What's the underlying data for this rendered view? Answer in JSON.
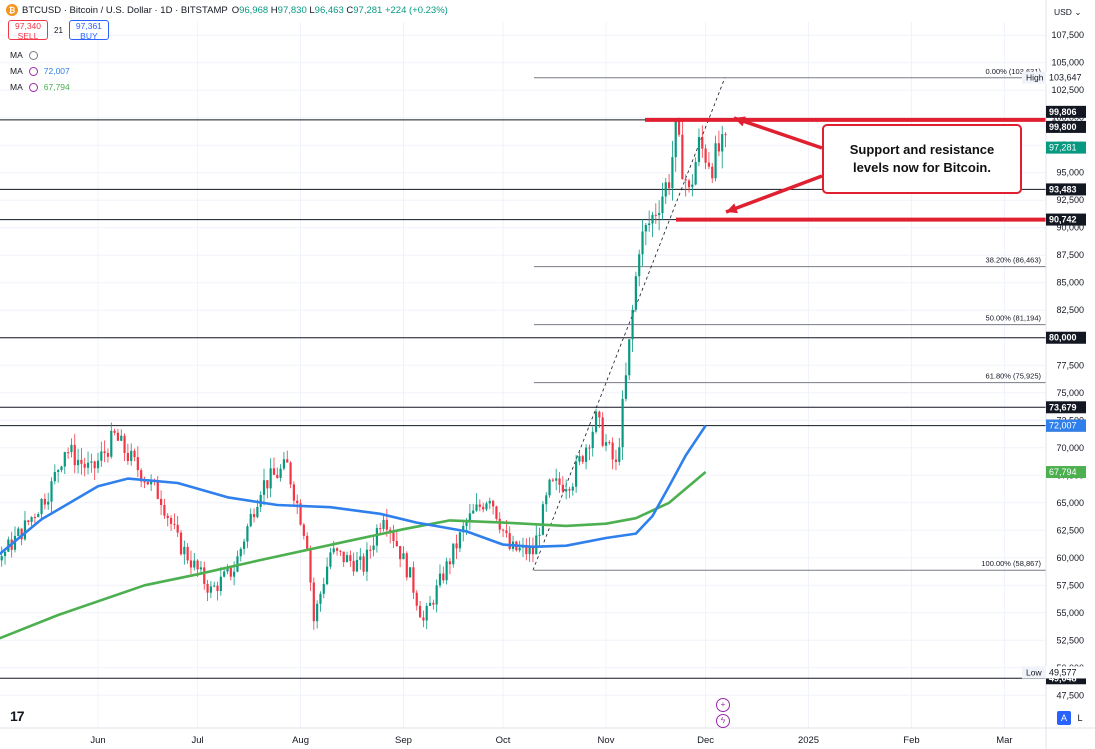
{
  "header": {
    "symbol": "BTCUSD · Bitcoin / U.S. Dollar · 1D · BITSTAMP",
    "logo": "₿",
    "open": "96,968",
    "high": "97,830",
    "low": "96,463",
    "close": "97,281",
    "change": "+224 (+0.23%)",
    "o_key": "O",
    "h_key": "H",
    "l_key": "L",
    "c_key": "C"
  },
  "trade": {
    "sell_price": "97,340",
    "sell_label": "SELL",
    "buy_price": "97,361",
    "buy_label": "BUY",
    "spread": "21"
  },
  "indicators": [
    {
      "label": "MA",
      "value": ""
    },
    {
      "label": "MA",
      "value": "72,007",
      "color": "#2f80ed"
    },
    {
      "label": "MA",
      "value": "67,794",
      "color": "#4caf50"
    }
  ],
  "currency_button": "USD",
  "annotation": "Support and resistance levels now for Bitcoin.",
  "logo_text": "17",
  "scale_buttons": {
    "auto": "A",
    "log": "L"
  },
  "colors": {
    "up": "#089981",
    "down": "#f23645",
    "ma_fast": "#2f80ed",
    "ma_slow": "#4caf50",
    "arrow": "#e02030"
  },
  "chart_data": {
    "type": "candlestick",
    "y_range": [
      47800,
      108700
    ],
    "y_ticks": [
      47500,
      50000,
      52500,
      55000,
      57500,
      60000,
      62500,
      65000,
      67500,
      70000,
      72500,
      75000,
      77500,
      80000,
      82500,
      85000,
      87500,
      90000,
      92500,
      95000,
      97500,
      100000,
      102500,
      105000,
      107500
    ],
    "y_tick_labels": [
      "47,500",
      "50,000",
      "52,500",
      "55,000",
      "57,500",
      "60,000",
      "62,500",
      "65,000",
      "67,500",
      "70,000",
      "72,500",
      "75,000",
      "77,500",
      "80,000",
      "82,500",
      "85,000",
      "87,500",
      "90,000",
      "92,500",
      "95,000",
      "97,500",
      "100,000",
      "102,500",
      "105,000",
      "107,500"
    ],
    "x_labels": [
      {
        "label": "Jun",
        "date": "2024-06-01"
      },
      {
        "label": "Jul",
        "date": "2024-07-01"
      },
      {
        "label": "Aug",
        "date": "2024-08-01"
      },
      {
        "label": "Sep",
        "date": "2024-09-01"
      },
      {
        "label": "Oct",
        "date": "2024-10-01"
      },
      {
        "label": "Nov",
        "date": "2024-11-01"
      },
      {
        "label": "Dec",
        "date": "2024-12-01"
      },
      {
        "label": "2025",
        "date": "2025-01-01"
      },
      {
        "label": "Feb",
        "date": "2025-02-01"
      },
      {
        "label": "Mar",
        "date": "2025-03-01"
      }
    ],
    "horizontal_levels": [
      {
        "value": 99800,
        "label": "99,800",
        "style": "black"
      },
      {
        "value": 99806,
        "label": "99,806",
        "style": "black"
      },
      {
        "value": 93483,
        "label": "93,483",
        "style": "black"
      },
      {
        "value": 90742,
        "label": "90,742",
        "style": "black"
      },
      {
        "value": 80000,
        "label": "80,000",
        "style": "black"
      },
      {
        "value": 73679,
        "label": "73,679",
        "style": "black"
      },
      {
        "value": 72010,
        "label": "72,010",
        "style": "black"
      },
      {
        "value": 49048,
        "label": "49,048",
        "style": "black"
      }
    ],
    "fib_levels": [
      {
        "value": 103631,
        "label": "0.00% (103,631)"
      },
      {
        "value": 86463,
        "label": "38.20% (86,463)"
      },
      {
        "value": 81194,
        "label": "50.00% (81,194)"
      },
      {
        "value": 75925,
        "label": "61.80% (75,925)"
      },
      {
        "value": 58867,
        "label": "100.00% (58,867)"
      }
    ],
    "price_labels": [
      {
        "value": 103647,
        "label": "103,647",
        "tag": "High"
      },
      {
        "value": 97281,
        "label": "97,281",
        "color": "#089981"
      },
      {
        "value": 72007,
        "label": "72,007",
        "color": "#2f80ed"
      },
      {
        "value": 67794,
        "label": "67,794",
        "color": "#4caf50"
      },
      {
        "value": 49577,
        "label": "49,577",
        "tag": "Low"
      }
    ],
    "ma_fast": {
      "name": "",
      "points": [
        [
          "2024-05-01",
          60000
        ],
        [
          "2024-05-15",
          63500
        ],
        [
          "2024-06-01",
          66500
        ],
        [
          "2024-06-10",
          67200
        ],
        [
          "2024-06-25",
          66800
        ],
        [
          "2024-07-10",
          65500
        ],
        [
          "2024-07-25",
          64800
        ],
        [
          "2024-08-10",
          64600
        ],
        [
          "2024-08-25",
          64000
        ],
        [
          "2024-09-05",
          63200
        ],
        [
          "2024-09-20",
          62400
        ],
        [
          "2024-10-01",
          61200
        ],
        [
          "2024-10-10",
          61000
        ],
        [
          "2024-10-20",
          61100
        ],
        [
          "2024-11-01",
          61800
        ],
        [
          "2024-11-10",
          62200
        ],
        [
          "2024-11-15",
          63800
        ],
        [
          "2024-11-20",
          66500
        ],
        [
          "2024-11-25",
          69300
        ],
        [
          "2024-12-01",
          72007
        ]
      ]
    },
    "ma_slow": {
      "name": "",
      "points": [
        [
          "2024-04-01",
          49200
        ],
        [
          "2024-04-25",
          51800
        ],
        [
          "2024-05-20",
          54800
        ],
        [
          "2024-06-15",
          57500
        ],
        [
          "2024-07-01",
          58500
        ],
        [
          "2024-07-20",
          59800
        ],
        [
          "2024-08-15",
          61500
        ],
        [
          "2024-09-01",
          62600
        ],
        [
          "2024-09-15",
          63400
        ],
        [
          "2024-10-01",
          63200
        ],
        [
          "2024-10-20",
          62900
        ],
        [
          "2024-11-01",
          63100
        ],
        [
          "2024-11-10",
          63600
        ],
        [
          "2024-11-20",
          65000
        ],
        [
          "2024-12-01",
          67794
        ]
      ]
    },
    "fib_trend_line": {
      "from": [
        "2024-10-10",
        58867
      ],
      "to": [
        "2024-12-05",
        103631
      ]
    },
    "candles_path": [
      [
        "2024-04-01",
        61500
      ],
      [
        "2024-04-12",
        64500
      ],
      [
        "2024-04-20",
        63000
      ],
      [
        "2024-05-01",
        59500
      ],
      [
        "2024-05-10",
        62800
      ],
      [
        "2024-05-18",
        66500
      ],
      [
        "2024-05-22",
        70000
      ],
      [
        "2024-05-30",
        67800
      ],
      [
        "2024-06-06",
        71000
      ],
      [
        "2024-06-12",
        68500
      ],
      [
        "2024-06-20",
        65500
      ],
      [
        "2024-06-25",
        61500
      ],
      [
        "2024-07-05",
        57000
      ],
      [
        "2024-07-12",
        59000
      ],
      [
        "2024-07-20",
        66500
      ],
      [
        "2024-07-28",
        68300
      ],
      [
        "2024-08-03",
        61500
      ],
      [
        "2024-08-05",
        54300
      ],
      [
        "2024-08-10",
        60500
      ],
      [
        "2024-08-20",
        59200
      ],
      [
        "2024-08-26",
        64200
      ],
      [
        "2024-09-03",
        58300
      ],
      [
        "2024-09-07",
        54200
      ],
      [
        "2024-09-13",
        58500
      ],
      [
        "2024-09-20",
        63200
      ],
      [
        "2024-09-27",
        65800
      ],
      [
        "2024-10-03",
        60800
      ],
      [
        "2024-10-10",
        60500
      ],
      [
        "2024-10-15",
        66300
      ],
      [
        "2024-10-22",
        67200
      ],
      [
        "2024-10-29",
        72500
      ],
      [
        "2024-11-04",
        68200
      ],
      [
        "2024-11-07",
        76200
      ],
      [
        "2024-11-11",
        88500
      ],
      [
        "2024-11-15",
        91000
      ],
      [
        "2024-11-20",
        94500
      ],
      [
        "2024-11-22",
        98500
      ],
      [
        "2024-11-26",
        93000
      ],
      [
        "2024-11-29",
        97500
      ],
      [
        "2024-12-03",
        95800
      ],
      [
        "2024-12-05",
        97000
      ],
      [
        "2024-12-07",
        97281
      ]
    ]
  }
}
